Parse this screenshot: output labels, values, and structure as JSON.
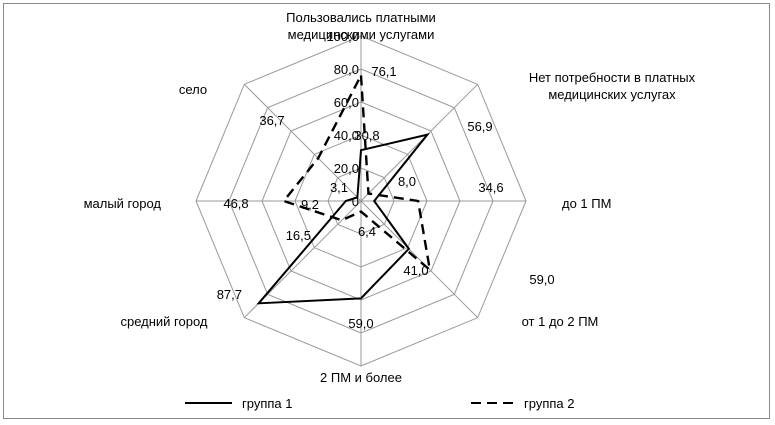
{
  "chart_data": {
    "type": "radar",
    "categories": [
      "Пользовались платными\nмедицинскими услугами",
      "Нет потребности в платных\nмедицинских услугах",
      "до 1 ПМ",
      "от 1  до 2 ПМ",
      "2 ПМ и более",
      "средний город",
      "малый город",
      "село"
    ],
    "radial_ticks": [
      "0",
      "20,0",
      "40,0",
      "60,0",
      "80,0",
      "100,0"
    ],
    "rlim": [
      0,
      100
    ],
    "series": [
      {
        "name": "группа 1",
        "values": [
          30.8,
          56.9,
          8.0,
          41.0,
          59.0,
          87.7,
          9.2,
          3.1
        ],
        "labels": [
          "30,8",
          "56,9",
          "8,0",
          "41,0",
          "59,0",
          "87,7",
          "9,2",
          "3,1"
        ],
        "line": "solid"
      },
      {
        "name": "группа 2",
        "values": [
          76.1,
          6.4,
          34.6,
          59.0,
          6.4,
          16.5,
          46.8,
          36.7
        ],
        "labels": [
          "76,1",
          "",
          "34,6",
          "59,0",
          "6,4",
          "16,5",
          "46,8",
          "36,7"
        ],
        "line": "dashed"
      }
    ],
    "legend_position": "bottom",
    "grid": true,
    "colors": {
      "series": "#000000",
      "grid": "#9a9a9a"
    }
  }
}
